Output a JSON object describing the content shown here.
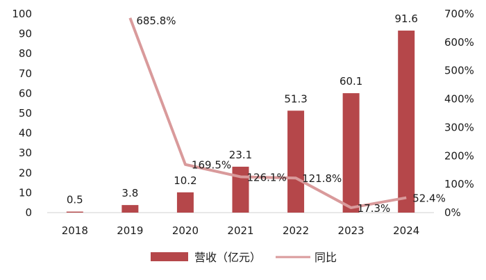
{
  "chart_data": {
    "type": "bar",
    "categories": [
      "2018",
      "2019",
      "2020",
      "2021",
      "2022",
      "2023",
      "2024"
    ],
    "series": [
      {
        "name": "营收（亿元）",
        "type": "bar",
        "axis": "left",
        "values": [
          0.5,
          3.8,
          10.2,
          23.1,
          51.3,
          60.1,
          91.6
        ],
        "labels": [
          "0.5",
          "3.8",
          "10.2",
          "23.1",
          "51.3",
          "60.1",
          "91.6"
        ],
        "color": "#b5474a"
      },
      {
        "name": "同比",
        "type": "line",
        "axis": "right",
        "values": [
          null,
          685.8,
          169.5,
          126.1,
          121.8,
          17.3,
          52.4
        ],
        "labels": [
          "",
          "685.8%",
          "169.5%",
          "126.1%",
          "121.8%",
          "17.3%",
          "52.4%"
        ],
        "color": "#d99a9b"
      }
    ],
    "y_left": {
      "lim": [
        0,
        100
      ],
      "ticks": [
        "0",
        "10",
        "20",
        "30",
        "40",
        "50",
        "60",
        "70",
        "80",
        "90",
        "100"
      ]
    },
    "y_right": {
      "lim": [
        0,
        700
      ],
      "ticks": [
        "0%",
        "100%",
        "200%",
        "300%",
        "400%",
        "500%",
        "600%",
        "700%"
      ]
    },
    "title": "",
    "xlabel": "",
    "ylabel": "",
    "grid": false,
    "legend": "bottom"
  }
}
